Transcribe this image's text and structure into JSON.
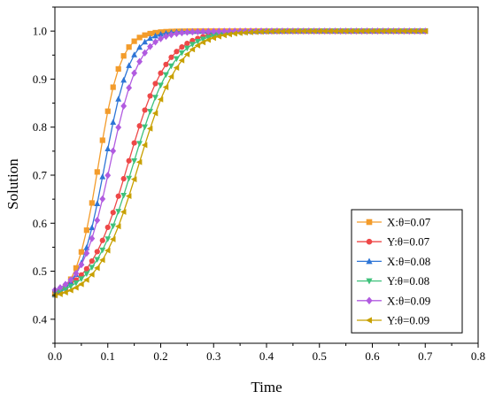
{
  "chart_data": {
    "type": "line",
    "xlabel": "Time",
    "ylabel": "Solution",
    "xlim": [
      0.0,
      0.8
    ],
    "ylim": [
      0.35,
      1.05
    ],
    "x_ticks": [
      "0.0",
      "0.1",
      "0.2",
      "0.3",
      "0.4",
      "0.5",
      "0.6",
      "0.7",
      "0.8"
    ],
    "y_ticks": [
      "0.4",
      "0.5",
      "0.6",
      "0.7",
      "0.8",
      "0.9",
      "1.0"
    ],
    "grid": false,
    "legend_position": "bottom-right",
    "x_range": [
      0.0,
      0.7
    ],
    "marker_spacing": 0.01,
    "series": [
      {
        "name": "X:θ=0.07",
        "color": "#F39C2B",
        "marker": "square",
        "curve": {
          "start": 0.44,
          "end": 1.0,
          "midpoint": 0.082,
          "scale": 0.021
        }
      },
      {
        "name": "Y:θ=0.07",
        "color": "#EE4848",
        "marker": "circle",
        "curve": {
          "start": 0.445,
          "end": 1.0,
          "midpoint": 0.138,
          "scale": 0.037
        }
      },
      {
        "name": "X:θ=0.08",
        "color": "#2E75D6",
        "marker": "triangle-up",
        "curve": {
          "start": 0.44,
          "end": 1.0,
          "midpoint": 0.094,
          "scale": 0.024
        }
      },
      {
        "name": "Y:θ=0.08",
        "color": "#3EC17B",
        "marker": "triangle-down",
        "curve": {
          "start": 0.445,
          "end": 1.0,
          "midpoint": 0.148,
          "scale": 0.038
        }
      },
      {
        "name": "X:θ=0.09",
        "color": "#B15BE0",
        "marker": "diamond",
        "curve": {
          "start": 0.45,
          "end": 1.0,
          "midpoint": 0.105,
          "scale": 0.027
        }
      },
      {
        "name": "Y:θ=0.09",
        "color": "#C8A000",
        "marker": "triangle-left",
        "curve": {
          "start": 0.44,
          "end": 1.0,
          "midpoint": 0.158,
          "scale": 0.039
        }
      }
    ]
  }
}
